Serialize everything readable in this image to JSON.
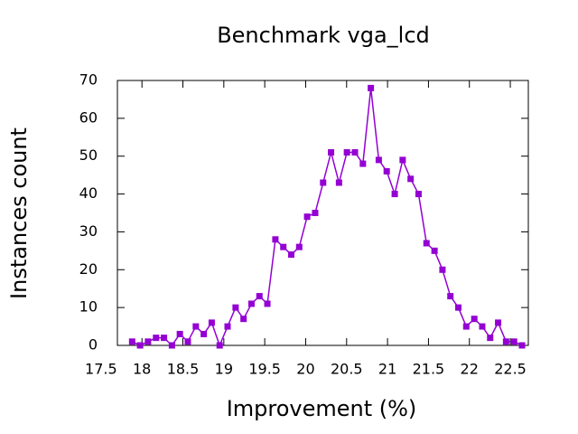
{
  "chart_data": {
    "type": "line",
    "title": "Benchmark vga_lcd",
    "x_label": "Improvement (%)",
    "y_label": "Instances count",
    "xlim": [
      17.7,
      22.72
    ],
    "ylim": [
      0,
      70
    ],
    "xticks": [
      17.5,
      18,
      18.5,
      19,
      19.5,
      20,
      20.5,
      21,
      21.5,
      22,
      22.5
    ],
    "yticks": [
      0,
      10,
      20,
      30,
      40,
      50,
      60,
      70
    ],
    "x": [
      17.88,
      17.977,
      18.074,
      18.172,
      18.269,
      18.366,
      18.463,
      18.56,
      18.658,
      18.755,
      18.852,
      18.949,
      19.046,
      19.144,
      19.241,
      19.338,
      19.435,
      19.532,
      19.63,
      19.727,
      19.824,
      19.921,
      20.018,
      20.116,
      20.213,
      20.31,
      20.407,
      20.504,
      20.602,
      20.699,
      20.796,
      20.893,
      20.99,
      21.088,
      21.185,
      21.282,
      21.379,
      21.476,
      21.574,
      21.671,
      21.768,
      21.865,
      21.962,
      22.06,
      22.157,
      22.254,
      22.351,
      22.448,
      22.546,
      22.643
    ],
    "series": [
      {
        "color": "#9400d3",
        "values": [
          1,
          0,
          1,
          2,
          2,
          0,
          3,
          1,
          5,
          3,
          6,
          0,
          5,
          10,
          7,
          11,
          13,
          11,
          28,
          26,
          24,
          26,
          34,
          35,
          43,
          51,
          43,
          51,
          51,
          48,
          68,
          49,
          46,
          40,
          49,
          44,
          40,
          27,
          25,
          20,
          13,
          10,
          5,
          7,
          5,
          2,
          6,
          1,
          1,
          0
        ]
      }
    ]
  }
}
